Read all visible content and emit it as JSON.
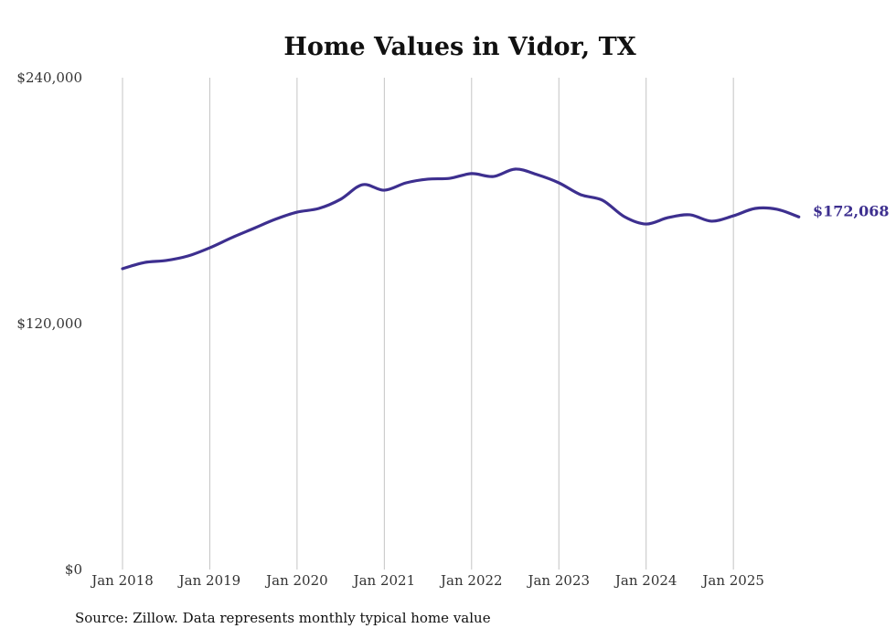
{
  "chart_data": {
    "type": "line",
    "title": "Home Values in Vidor, TX",
    "xlabel": "",
    "ylabel": "",
    "ylim": [
      0,
      240000
    ],
    "xlim": [
      2018,
      2025.75
    ],
    "y_ticks": [
      0,
      120000,
      240000
    ],
    "y_tick_labels": [
      "$0",
      "$120,000",
      "$240,000"
    ],
    "x_ticks": [
      2018,
      2019,
      2020,
      2021,
      2022,
      2023,
      2024,
      2025
    ],
    "x_tick_labels": [
      "Jan 2018",
      "Jan 2019",
      "Jan 2020",
      "Jan 2021",
      "Jan 2022",
      "Jan 2023",
      "Jan 2024",
      "Jan 2025"
    ],
    "grid": "vertical",
    "series": [
      {
        "name": "Typical home value",
        "color": "#3d2f8f",
        "x": [
          2018,
          2018.25,
          2018.5,
          2018.75,
          2019,
          2019.25,
          2019.5,
          2019.75,
          2020,
          2020.25,
          2020.5,
          2020.75,
          2021,
          2021.25,
          2021.5,
          2021.75,
          2022,
          2022.25,
          2022.5,
          2022.75,
          2023,
          2023.25,
          2023.5,
          2023.75,
          2024,
          2024.25,
          2024.5,
          2024.75,
          2025,
          2025.25,
          2025.5,
          2025.75
        ],
        "values": [
          146800,
          149800,
          150800,
          153000,
          157000,
          161900,
          166400,
          170900,
          174400,
          176200,
          180700,
          187800,
          185100,
          188700,
          190500,
          190900,
          193200,
          191800,
          195400,
          192700,
          188700,
          182900,
          180200,
          172200,
          168600,
          171700,
          173100,
          170000,
          172600,
          176200,
          175800,
          172068
        ]
      }
    ],
    "end_label": "$172,068"
  },
  "source": "Source: Zillow. Data represents monthly typical home value"
}
